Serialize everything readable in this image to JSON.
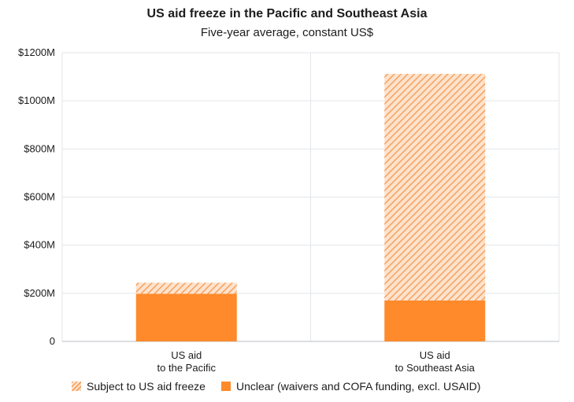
{
  "title": "US aid freeze in the Pacific and Southeast Asia",
  "subtitle": "Five-year average, constant US$",
  "legend": {
    "freeze_label": "Subject to US aid freeze",
    "unclear_label": "Unclear (waivers and COFA funding, excl. USAID)"
  },
  "colors": {
    "unclear": "#ff8a2b",
    "freeze_stripe": "#f6a15e",
    "freeze_bg": "#fde3cd",
    "grid": "#e3e6ea",
    "axis": "#b9bec4"
  },
  "chart_data": {
    "type": "bar",
    "stacked": true,
    "categories": [
      [
        "US aid",
        "to the Pacific"
      ],
      [
        "US aid",
        "to Southeast Asia"
      ]
    ],
    "series": [
      {
        "name": "Unclear (waivers and COFA funding, excl. USAID)",
        "values": [
          198,
          170
        ],
        "fill": "solid"
      },
      {
        "name": "Subject to US aid freeze",
        "values": [
          46,
          942
        ],
        "fill": "hatch"
      }
    ],
    "ylim": [
      0,
      1200
    ],
    "yticks": [
      {
        "value": 0,
        "label": "0"
      },
      {
        "value": 200,
        "label": "$200M"
      },
      {
        "value": 400,
        "label": "$400M"
      },
      {
        "value": 600,
        "label": "$600M"
      },
      {
        "value": 800,
        "label": "$800M"
      },
      {
        "value": 1000,
        "label": "$1000M"
      },
      {
        "value": 1200,
        "label": "$1200M"
      }
    ],
    "grid": true,
    "legend_position": "bottom"
  }
}
